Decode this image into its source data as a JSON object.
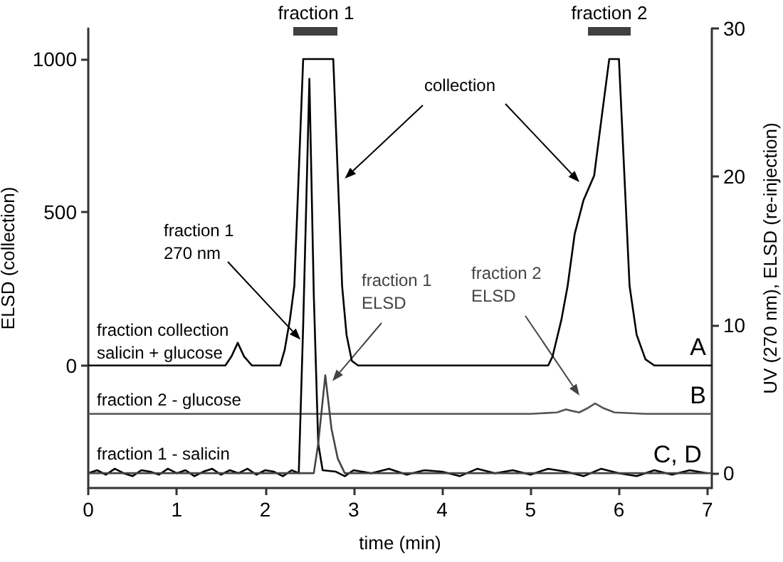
{
  "chart_data": {
    "type": "line",
    "xlabel": "time (min)",
    "ylabel": "ELSD (collection)",
    "y2label": "UV (270 nm), ELSD (re-injection)",
    "xlim": [
      0,
      7.05
    ],
    "xticks": [
      0,
      1,
      2,
      3,
      4,
      5,
      6,
      7
    ],
    "ylim": [
      -400,
      1100
    ],
    "yticks": [
      0,
      500,
      1000
    ],
    "y2lim": [
      -1,
      30
    ],
    "y2ticks": [
      0,
      10,
      20,
      30
    ],
    "grid": false,
    "legend": false,
    "marker": "none",
    "line_style": "solid",
    "series": [
      {
        "name": "A",
        "color": "#000000",
        "x": [
          0,
          1.55,
          1.62,
          1.69,
          1.76,
          1.85,
          2.17,
          2.22,
          2.28,
          2.33,
          2.43,
          2.77,
          2.87,
          2.92,
          2.98,
          3.05,
          5.2,
          5.25,
          5.35,
          5.42,
          5.5,
          5.6,
          5.72,
          5.8,
          5.89,
          6.0,
          6.12,
          6.2,
          6.3,
          6.4,
          7.05
        ],
        "values": [
          0,
          0,
          30,
          74,
          30,
          0,
          0,
          50,
          150,
          260,
          1000,
          1000,
          260,
          100,
          15,
          0,
          0,
          30,
          150,
          260,
          430,
          540,
          620,
          800,
          1000,
          1000,
          260,
          100,
          20,
          0,
          0
        ]
      },
      {
        "name": "B",
        "color": "#555555",
        "axis": "y2",
        "x": [
          0,
          1,
          2,
          3,
          4,
          5,
          5.3,
          5.4,
          5.47,
          5.55,
          5.65,
          5.73,
          5.82,
          5.95,
          6.3,
          7.05
        ],
        "values": [
          4,
          4,
          4,
          4,
          4,
          4,
          4.1,
          4.3,
          4.2,
          4.1,
          4.4,
          4.7,
          4.4,
          4.1,
          4,
          4
        ]
      },
      {
        "name": "C, D",
        "color": "#000000",
        "axis": "y2",
        "x": [
          0,
          0.1,
          0.2,
          0.3,
          0.4,
          0.5,
          0.6,
          0.7,
          0.8,
          0.9,
          1.0,
          1.1,
          1.2,
          1.3,
          1.4,
          1.5,
          1.6,
          1.7,
          1.8,
          1.9,
          2.0,
          2.1,
          2.2,
          2.3,
          2.38,
          2.43,
          2.5,
          2.55,
          2.6,
          2.65,
          2.8,
          2.9,
          3.0,
          3.2,
          3.4,
          3.6,
          3.8,
          4.0,
          4.2,
          4.4,
          4.6,
          4.8,
          5.0,
          5.2,
          5.4,
          5.6,
          5.8,
          6.0,
          6.2,
          6.4,
          6.6,
          6.8,
          7.0
        ],
        "values": [
          0,
          0.2,
          -0.1,
          0.3,
          0,
          -0.2,
          0.2,
          0.1,
          -0.1,
          0.3,
          0,
          0.2,
          -0.2,
          0.1,
          0.3,
          -0.1,
          0.2,
          0,
          0.3,
          -0.1,
          0.2,
          0.1,
          -0.2,
          0.2,
          0,
          10,
          26.6,
          12,
          2,
          0.2,
          0.1,
          -0.2,
          0.2,
          0,
          0.3,
          -0.1,
          0.2,
          0.1,
          -0.2,
          0.3,
          0,
          0.2,
          -0.1,
          0.3,
          0.1,
          -0.2,
          0.3,
          0,
          -0.2,
          0.2,
          -0.1,
          0.2,
          0
        ]
      },
      {
        "color": "#444444",
        "axis": "y2",
        "x": [
          0,
          2.55,
          2.6,
          2.68,
          2.75,
          2.82,
          2.9,
          7.05
        ],
        "values": [
          0,
          0,
          2,
          6.6,
          3,
          1,
          0,
          0
        ]
      }
    ],
    "annotations": [
      "fraction 1",
      "fraction 2",
      {
        "text": "collection",
        "x": 2.9,
        "y": 610
      },
      {
        "text": "fraction 1\n270 nm",
        "x": 2.4,
        "y": 84
      },
      {
        "text": "fraction 1\nELSD",
        "x": 2.76,
        "y": -51
      },
      "fraction 2\nELSD",
      "fraction collection\nsalicin + glucose",
      "fraction 2 - glucose",
      "fraction 1 - salicin"
    ]
  }
}
